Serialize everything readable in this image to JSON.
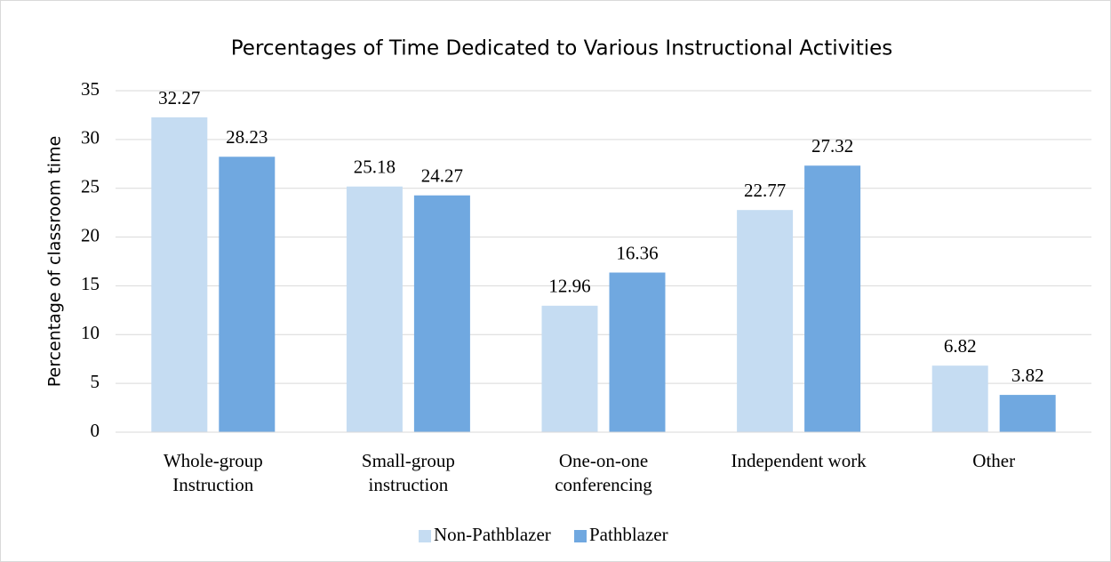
{
  "chart_data": {
    "type": "bar",
    "title": "Percentages of Time Dedicated to Various Instructional Activities",
    "y_label": "Percentage of classroom time",
    "categories": [
      "Whole-group\nInstruction",
      "Small-group\ninstruction",
      "One-on-one\nconferencing",
      "Independent work",
      "Other"
    ],
    "series": [
      {
        "name": "Non-Pathblazer",
        "color": "#c5dcf2",
        "values": [
          32.27,
          25.18,
          12.96,
          22.77,
          6.82
        ]
      },
      {
        "name": "Pathblazer",
        "color": "#70a8e0",
        "values": [
          28.23,
          24.27,
          16.36,
          27.32,
          3.82
        ]
      }
    ],
    "ylim": [
      0,
      35
    ],
    "yticks": [
      0,
      5,
      10,
      15,
      20,
      25,
      30,
      35
    ],
    "grid": true,
    "legend": "bottom"
  }
}
